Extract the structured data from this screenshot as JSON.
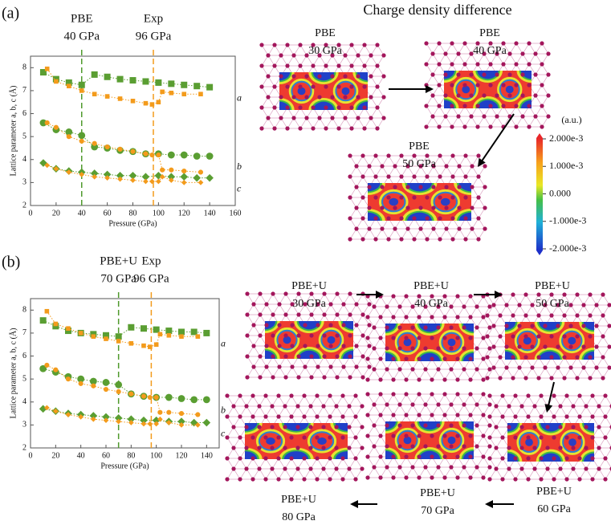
{
  "panel_labels": [
    "(a)",
    "(b)"
  ],
  "chart_data": [
    {
      "type": "scatter",
      "xlabel": "Pressure (GPa)",
      "ylabel": "Lattice parameter a, b, c (Å)",
      "xlim": [
        0,
        160
      ],
      "xticks": [
        0,
        20,
        40,
        60,
        80,
        100,
        120,
        140,
        160
      ],
      "ylim": [
        2,
        8.5
      ],
      "yticks": [
        2,
        3,
        4,
        5,
        6,
        7,
        8
      ],
      "curve_labels": [
        "a",
        "b",
        "c"
      ],
      "vlines": [
        {
          "x": 40,
          "color": "#4f9a2c",
          "label": [
            "PBE",
            "40 GPa"
          ]
        },
        {
          "x": 96,
          "color": "#f39b1c",
          "label": [
            "Exp",
            "96 GPa"
          ]
        }
      ],
      "series": [
        {
          "color": "#5a9e32",
          "marker": "square",
          "x": [
            10,
            20,
            30,
            40,
            50,
            60,
            70,
            80,
            90,
            100,
            110,
            120,
            130,
            140
          ],
          "values": [
            7.8,
            7.5,
            7.35,
            7.25,
            7.7,
            7.6,
            7.5,
            7.45,
            7.4,
            7.35,
            7.3,
            7.25,
            7.2,
            7.15
          ]
        },
        {
          "color": "#5a9e32",
          "marker": "circle",
          "x": [
            10,
            20,
            30,
            40,
            50,
            60,
            70,
            80,
            90,
            100,
            110,
            120,
            130,
            140
          ],
          "values": [
            5.6,
            5.3,
            5.2,
            5.05,
            4.55,
            4.5,
            4.4,
            4.35,
            4.25,
            4.25,
            4.2,
            4.2,
            4.15,
            4.15
          ]
        },
        {
          "color": "#5a9e32",
          "marker": "diamond",
          "x": [
            10,
            20,
            30,
            40,
            50,
            60,
            70,
            80,
            90,
            100,
            110,
            120,
            130,
            140
          ],
          "values": [
            3.85,
            3.6,
            3.5,
            3.45,
            3.4,
            3.35,
            3.3,
            3.3,
            3.25,
            3.3,
            3.25,
            3.25,
            3.2,
            3.2
          ]
        },
        {
          "color": "#f39b1c",
          "marker": "square",
          "x": [
            13,
            20,
            30,
            40,
            50,
            60,
            70,
            80,
            90,
            95,
            100,
            103,
            110,
            120,
            133
          ],
          "values": [
            7.95,
            7.4,
            7.2,
            7.0,
            6.85,
            6.75,
            6.65,
            6.55,
            6.45,
            6.4,
            6.5,
            6.95,
            6.9,
            6.85,
            6.85
          ]
        },
        {
          "color": "#f39b1c",
          "marker": "circle",
          "x": [
            13,
            20,
            30,
            40,
            50,
            60,
            70,
            80,
            90,
            95,
            100,
            103,
            110,
            120,
            133
          ],
          "values": [
            5.6,
            5.4,
            5.0,
            4.8,
            4.7,
            4.55,
            4.45,
            4.35,
            4.25,
            4.2,
            4.2,
            3.55,
            3.55,
            3.5,
            3.45
          ]
        },
        {
          "color": "#f39b1c",
          "marker": "diamond",
          "x": [
            13,
            20,
            30,
            40,
            50,
            60,
            70,
            80,
            90,
            95,
            100,
            103,
            110,
            120,
            133
          ],
          "values": [
            3.75,
            3.6,
            3.45,
            3.35,
            3.25,
            3.2,
            3.15,
            3.1,
            3.05,
            3.05,
            3.05,
            3.25,
            3.1,
            3.0,
            3.0
          ]
        }
      ]
    },
    {
      "type": "scatter",
      "xlabel": "Pressure (GPa)",
      "ylabel": "Lattice parameter a, b, c (Å)",
      "xlim": [
        0,
        150
      ],
      "xticks": [
        0,
        20,
        40,
        60,
        80,
        100,
        120,
        140
      ],
      "ylim": [
        2,
        8.5
      ],
      "yticks": [
        2,
        3,
        4,
        5,
        6,
        7,
        8
      ],
      "curve_labels": [
        "a",
        "b",
        "c"
      ],
      "vlines": [
        {
          "x": 70,
          "color": "#4f9a2c",
          "label": [
            "PBE+U",
            "70 GPa"
          ]
        },
        {
          "x": 96,
          "color": "#f39b1c",
          "label": [
            "Exp",
            "96 GPa"
          ]
        }
      ],
      "series": [
        {
          "color": "#5a9e32",
          "marker": "square",
          "x": [
            10,
            20,
            30,
            40,
            50,
            60,
            70,
            80,
            90,
            100,
            110,
            120,
            130,
            140
          ],
          "values": [
            7.55,
            7.3,
            7.1,
            7.0,
            6.95,
            6.9,
            6.85,
            7.25,
            7.2,
            7.15,
            7.1,
            7.05,
            7.05,
            7.0
          ]
        },
        {
          "color": "#5a9e32",
          "marker": "circle",
          "x": [
            10,
            20,
            30,
            40,
            50,
            60,
            70,
            80,
            90,
            100,
            110,
            120,
            130,
            140
          ],
          "values": [
            5.45,
            5.3,
            5.1,
            5.0,
            4.9,
            4.85,
            4.75,
            4.35,
            4.25,
            4.2,
            4.2,
            4.15,
            4.1,
            4.1
          ]
        },
        {
          "color": "#5a9e32",
          "marker": "diamond",
          "x": [
            10,
            20,
            30,
            40,
            50,
            60,
            70,
            80,
            90,
            100,
            110,
            120,
            130,
            140
          ],
          "values": [
            3.7,
            3.6,
            3.5,
            3.45,
            3.4,
            3.35,
            3.3,
            3.25,
            3.2,
            3.2,
            3.15,
            3.15,
            3.1,
            3.1
          ]
        },
        {
          "color": "#f39b1c",
          "marker": "square",
          "x": [
            13,
            20,
            30,
            40,
            50,
            60,
            70,
            80,
            90,
            95,
            100,
            103,
            110,
            120,
            133
          ],
          "values": [
            7.95,
            7.4,
            7.2,
            7.0,
            6.85,
            6.75,
            6.65,
            6.55,
            6.45,
            6.4,
            6.5,
            6.95,
            6.9,
            6.85,
            6.85
          ]
        },
        {
          "color": "#f39b1c",
          "marker": "circle",
          "x": [
            13,
            20,
            30,
            40,
            50,
            60,
            70,
            80,
            90,
            95,
            100,
            103,
            110,
            120,
            133
          ],
          "values": [
            5.6,
            5.4,
            5.0,
            4.8,
            4.7,
            4.55,
            4.45,
            4.35,
            4.25,
            4.2,
            4.2,
            3.55,
            3.55,
            3.5,
            3.45
          ]
        },
        {
          "color": "#f39b1c",
          "marker": "diamond",
          "x": [
            13,
            20,
            30,
            40,
            50,
            60,
            70,
            80,
            90,
            95,
            100,
            103,
            110,
            120,
            133
          ],
          "values": [
            3.75,
            3.6,
            3.45,
            3.35,
            3.25,
            3.2,
            3.15,
            3.1,
            3.05,
            3.05,
            3.05,
            3.25,
            3.1,
            3.0,
            3.0
          ]
        }
      ]
    }
  ],
  "charge_density": {
    "title": "Charge density difference",
    "colorbar": {
      "unit": "(a.u.)",
      "labels": [
        "2.000e-3",
        "1.000e-3",
        "0.000",
        "-1.000e-3",
        "-2.000e-3"
      ]
    },
    "panels": [
      {
        "method": "PBE",
        "pressure": "30 GPa"
      },
      {
        "method": "PBE",
        "pressure": "40 GPa"
      },
      {
        "method": "PBE",
        "pressure": "50 GPa"
      },
      {
        "method": "PBE+U",
        "pressure": "30 GPa"
      },
      {
        "method": "PBE+U",
        "pressure": "40 GPa"
      },
      {
        "method": "PBE+U",
        "pressure": "50 GPa"
      },
      {
        "method": "PBE+U",
        "pressure": "60 GPa"
      },
      {
        "method": "PBE+U",
        "pressure": "70 GPa"
      },
      {
        "method": "PBE+U",
        "pressure": "80 GPa"
      }
    ]
  }
}
